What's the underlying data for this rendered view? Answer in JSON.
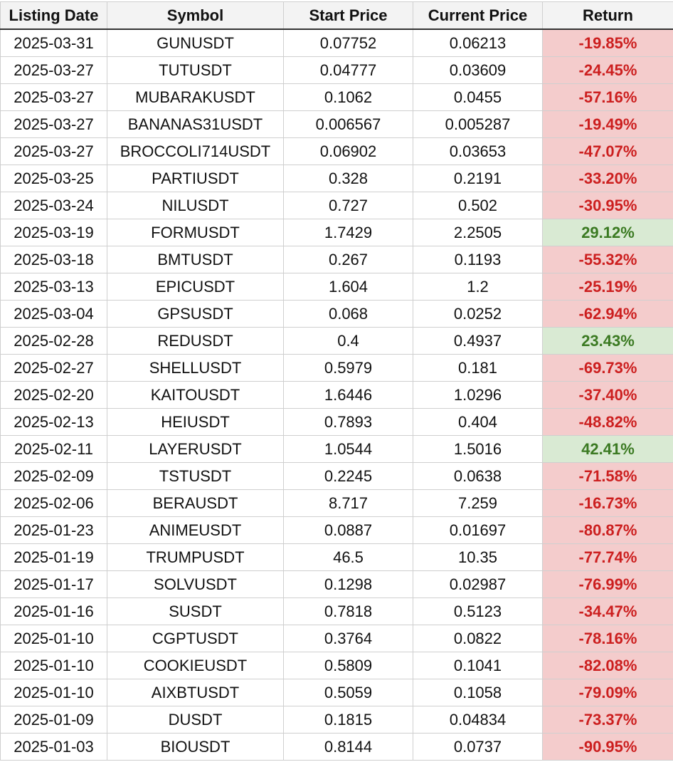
{
  "table": {
    "columns": [
      "Listing Date",
      "Symbol",
      "Start Price",
      "Current Price",
      "Return"
    ],
    "rows": [
      [
        "2025-03-31",
        "GUNUSDT",
        "0.07752",
        "0.06213",
        "-19.85%"
      ],
      [
        "2025-03-27",
        "TUTUSDT",
        "0.04777",
        "0.03609",
        "-24.45%"
      ],
      [
        "2025-03-27",
        "MUBARAKUSDT",
        "0.1062",
        "0.0455",
        "-57.16%"
      ],
      [
        "2025-03-27",
        "BANANAS31USDT",
        "0.006567",
        "0.005287",
        "-19.49%"
      ],
      [
        "2025-03-27",
        "BROCCOLI714USDT",
        "0.06902",
        "0.03653",
        "-47.07%"
      ],
      [
        "2025-03-25",
        "PARTIUSDT",
        "0.328",
        "0.2191",
        "-33.20%"
      ],
      [
        "2025-03-24",
        "NILUSDT",
        "0.727",
        "0.502",
        "-30.95%"
      ],
      [
        "2025-03-19",
        "FORMUSDT",
        "1.7429",
        "2.2505",
        "29.12%"
      ],
      [
        "2025-03-18",
        "BMTUSDT",
        "0.267",
        "0.1193",
        "-55.32%"
      ],
      [
        "2025-03-13",
        "EPICUSDT",
        "1.604",
        "1.2",
        "-25.19%"
      ],
      [
        "2025-03-04",
        "GPSUSDT",
        "0.068",
        "0.0252",
        "-62.94%"
      ],
      [
        "2025-02-28",
        "REDUSDT",
        "0.4",
        "0.4937",
        "23.43%"
      ],
      [
        "2025-02-27",
        "SHELLUSDT",
        "0.5979",
        "0.181",
        "-69.73%"
      ],
      [
        "2025-02-20",
        "KAITOUSDT",
        "1.6446",
        "1.0296",
        "-37.40%"
      ],
      [
        "2025-02-13",
        "HEIUSDT",
        "0.7893",
        "0.404",
        "-48.82%"
      ],
      [
        "2025-02-11",
        "LAYERUSDT",
        "1.0544",
        "1.5016",
        "42.41%"
      ],
      [
        "2025-02-09",
        "TSTUSDT",
        "0.2245",
        "0.0638",
        "-71.58%"
      ],
      [
        "2025-02-06",
        "BERAUSDT",
        "8.717",
        "7.259",
        "-16.73%"
      ],
      [
        "2025-01-23",
        "ANIMEUSDT",
        "0.0887",
        "0.01697",
        "-80.87%"
      ],
      [
        "2025-01-19",
        "TRUMPUSDT",
        "46.5",
        "10.35",
        "-77.74%"
      ],
      [
        "2025-01-17",
        "SOLVUSDT",
        "0.1298",
        "0.02987",
        "-76.99%"
      ],
      [
        "2025-01-16",
        "SUSDT",
        "0.7818",
        "0.5123",
        "-34.47%"
      ],
      [
        "2025-01-10",
        "CGPTUSDT",
        "0.3764",
        "0.0822",
        "-78.16%"
      ],
      [
        "2025-01-10",
        "COOKIEUSDT",
        "0.5809",
        "0.1041",
        "-82.08%"
      ],
      [
        "2025-01-10",
        "AIXBTUSDT",
        "0.5059",
        "0.1058",
        "-79.09%"
      ],
      [
        "2025-01-09",
        "DUSDT",
        "0.1815",
        "0.04834",
        "-73.37%"
      ],
      [
        "2025-01-03",
        "BIOUSDT",
        "0.8144",
        "0.0737",
        "-90.95%"
      ]
    ]
  }
}
